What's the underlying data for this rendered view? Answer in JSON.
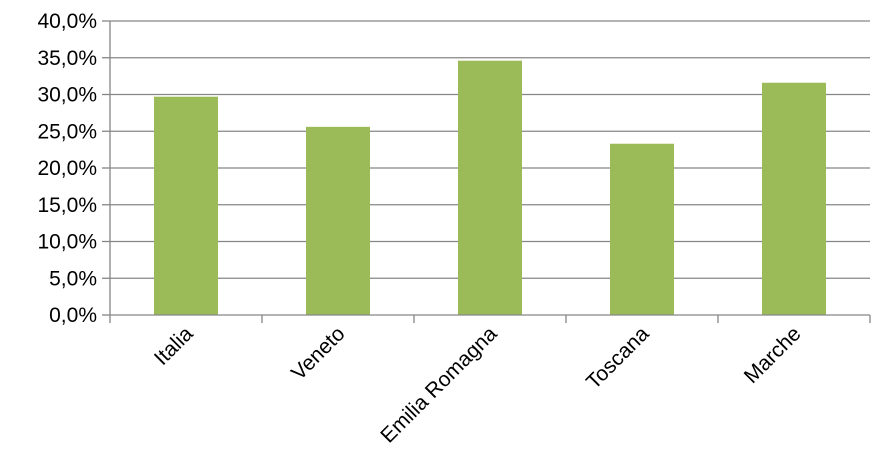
{
  "chart_data": {
    "type": "bar",
    "categories": [
      "Italia",
      "Veneto",
      "Emilia Romagna",
      "Toscana",
      "Marche"
    ],
    "values": [
      29.7,
      25.6,
      34.6,
      23.3,
      31.6
    ],
    "ylim": [
      0,
      40
    ],
    "ytick_values": [
      0,
      5,
      10,
      15,
      20,
      25,
      30,
      35,
      40
    ],
    "ytick_labels": [
      "0,0%",
      "5,0%",
      "10,0%",
      "15,0%",
      "20,0%",
      "25,0%",
      "30,0%",
      "35,0%",
      "40,0%"
    ],
    "grid": true,
    "legend": "none",
    "bar_color": "#9BBB59",
    "grid_color": "#868686",
    "axis_color": "#868686"
  }
}
